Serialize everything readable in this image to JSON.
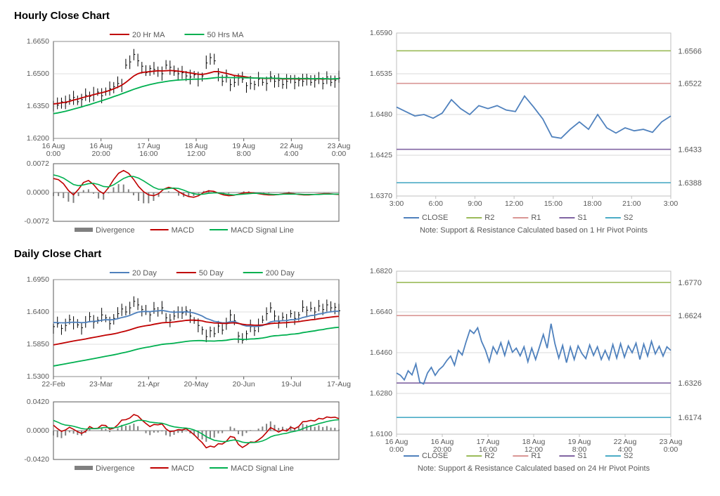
{
  "hourly": {
    "title": "Hourly Close Chart",
    "price": {
      "type": "line+ohlc",
      "ylim": [
        1.62,
        1.665
      ],
      "ytick_step": 0.015,
      "yticks": [
        "1.6200",
        "1.6350",
        "1.6500",
        "1.6650"
      ],
      "x_labels": [
        "16 Aug\n0:00",
        "16 Aug\n20:00",
        "17 Aug\n16:00",
        "18 Aug\n12:00",
        "19 Aug\n8:00",
        "22 Aug\n4:00",
        "23 Aug\n0:00"
      ],
      "close": [
        1.636,
        1.6355,
        1.637,
        1.6365,
        1.638,
        1.639,
        1.637,
        1.638,
        1.64,
        1.6395,
        1.6405,
        1.6415,
        1.6398,
        1.642,
        1.643,
        1.644,
        1.6455,
        1.645,
        1.654,
        1.6555,
        1.659,
        1.656,
        1.6535,
        1.6505,
        1.6525,
        1.652,
        1.6515,
        1.65,
        1.654,
        1.653,
        1.651,
        1.65,
        1.6505,
        1.649,
        1.6485,
        1.6495,
        1.6475,
        1.649,
        1.655,
        1.6575,
        1.656,
        1.65,
        1.6465,
        1.649,
        1.645,
        1.646,
        1.648,
        1.6475,
        1.6445,
        1.6455,
        1.645,
        1.6475,
        1.646,
        1.6455,
        1.6485,
        1.6465,
        1.647,
        1.645,
        1.6465,
        1.6475,
        1.646,
        1.647,
        1.6465,
        1.648,
        1.646,
        1.647,
        1.6478,
        1.6455,
        1.6485,
        1.646,
        1.647,
        1.648
      ],
      "hl_amp": 0.0035,
      "ma20": [
        1.636,
        1.6362,
        1.6365,
        1.6368,
        1.6372,
        1.6378,
        1.6382,
        1.6388,
        1.6393,
        1.6398,
        1.6403,
        1.6408,
        1.6412,
        1.6417,
        1.6423,
        1.643,
        1.6438,
        1.6447,
        1.646,
        1.6475,
        1.649,
        1.65,
        1.6506,
        1.6508,
        1.651,
        1.6512,
        1.6514,
        1.6513,
        1.6514,
        1.6515,
        1.6514,
        1.6512,
        1.651,
        1.6507,
        1.6504,
        1.6501,
        1.6498,
        1.6497,
        1.65,
        1.6505,
        1.651,
        1.651,
        1.6506,
        1.6502,
        1.6497,
        1.6492,
        1.649,
        1.6488,
        1.6485,
        1.6482,
        1.648,
        1.648,
        1.6479,
        1.6478,
        1.6479,
        1.6478,
        1.6478,
        1.6476,
        1.6476,
        1.6477,
        1.6476,
        1.6476,
        1.6476,
        1.6477,
        1.6476,
        1.6476,
        1.6477,
        1.6475,
        1.6477,
        1.6475,
        1.6476,
        1.6477
      ],
      "ma50": [
        1.6315,
        1.6318,
        1.6322,
        1.6326,
        1.6331,
        1.6336,
        1.6341,
        1.6346,
        1.6352,
        1.6357,
        1.6363,
        1.6369,
        1.6375,
        1.6381,
        1.6387,
        1.6394,
        1.64,
        1.6407,
        1.6414,
        1.6421,
        1.6428,
        1.6434,
        1.644,
        1.6445,
        1.645,
        1.6454,
        1.6458,
        1.6461,
        1.6464,
        1.6467,
        1.6469,
        1.6471,
        1.6472,
        1.6473,
        1.6474,
        1.6475,
        1.6475,
        1.6476,
        1.6477,
        1.6479,
        1.6481,
        1.6483,
        1.6483,
        1.6483,
        1.6482,
        1.6482,
        1.6482,
        1.6482,
        1.6481,
        1.6481,
        1.648,
        1.648,
        1.648,
        1.6479,
        1.648,
        1.6479,
        1.6479,
        1.6478,
        1.6478,
        1.6478,
        1.6478,
        1.6478,
        1.6478,
        1.6478,
        1.6477,
        1.6477,
        1.6478,
        1.6477,
        1.6477,
        1.6476,
        1.6477,
        1.6477
      ],
      "colors": {
        "close": "#000000",
        "ma20": "#c00000",
        "ma50": "#00b050",
        "grid": "#bfbfbf",
        "border": "#595959"
      },
      "legend": [
        {
          "label": "20 Hr MA",
          "color": "#c00000"
        },
        {
          "label": "50 Hrs MA",
          "color": "#00b050"
        }
      ]
    },
    "macd": {
      "type": "macd",
      "ylim": [
        -0.0072,
        0.0072
      ],
      "yticks": [
        "-0.0072",
        "0.0000",
        "0.0072"
      ],
      "macd": [
        0.0035,
        0.0032,
        0.0022,
        0.0005,
        -0.0006,
        0.0008,
        0.0025,
        0.003,
        0.002,
        0.0005,
        -0.0003,
        0.0012,
        0.0032,
        0.0048,
        0.0055,
        0.0048,
        0.0033,
        0.0015,
        0.0002,
        -0.0006,
        -0.0008,
        -0.0003,
        0.0008,
        0.0013,
        0.001,
        0.0002,
        -0.0005,
        -0.001,
        -0.0012,
        -0.0008,
        0.0,
        0.0004,
        0.0003,
        -0.0002,
        -0.0006,
        -0.0008,
        -0.0007,
        -0.0004,
        -0.0001,
        0.0,
        -0.0001,
        -0.0003,
        -0.0005,
        -0.0006,
        -0.0006,
        -0.0005,
        -0.0003,
        -0.0002,
        -0.0003,
        -0.0005,
        -0.0006,
        -0.0006,
        -0.0005,
        -0.0004,
        -0.0003,
        -0.0003,
        -0.0004,
        -0.0005
      ],
      "signal": [
        0.0044,
        0.0041,
        0.0036,
        0.0028,
        0.002,
        0.0017,
        0.0019,
        0.0022,
        0.0023,
        0.002,
        0.0015,
        0.0014,
        0.0019,
        0.0027,
        0.0035,
        0.004,
        0.004,
        0.0036,
        0.0029,
        0.0021,
        0.0013,
        0.0008,
        0.0008,
        0.001,
        0.0011,
        0.001,
        0.0006,
        0.0001,
        -0.0003,
        -0.0005,
        -0.0004,
        -0.0002,
        -0.0001,
        -0.0001,
        -0.0003,
        -0.0005,
        -0.0006,
        -0.0005,
        -0.0004,
        -0.0003,
        -0.0002,
        -0.0002,
        -0.0003,
        -0.0004,
        -0.0005,
        -0.0005,
        -0.0004,
        -0.0004,
        -0.0004,
        -0.0004,
        -0.0005,
        -0.0005,
        -0.0005,
        -0.0005,
        -0.0004,
        -0.0004,
        -0.0004,
        -0.0004
      ],
      "colors": {
        "macd": "#c00000",
        "signal": "#00b050",
        "hist": "#808080",
        "zero": "#595959",
        "border": "#595959"
      },
      "legend": [
        {
          "label": "Divergence",
          "color": "#808080",
          "thick": true
        },
        {
          "label": "MACD",
          "color": "#c00000"
        },
        {
          "label": "MACD Signal Line",
          "color": "#00b050"
        }
      ]
    },
    "sr": {
      "type": "support-resistance",
      "ylim": [
        1.637,
        1.659
      ],
      "yticks": [
        "1.6370",
        "1.6425",
        "1.6480",
        "1.6535",
        "1.6590"
      ],
      "x_labels": [
        "3:00",
        "6:00",
        "9:00",
        "12:00",
        "15:00",
        "18:00",
        "21:00",
        "3:00"
      ],
      "close": [
        1.649,
        1.6484,
        1.6478,
        1.648,
        1.6475,
        1.6482,
        1.65,
        1.6488,
        1.648,
        1.6492,
        1.6488,
        1.6492,
        1.6486,
        1.6484,
        1.6505,
        1.649,
        1.6474,
        1.645,
        1.6448,
        1.646,
        1.647,
        1.646,
        1.648,
        1.6462,
        1.6455,
        1.6462,
        1.6458,
        1.646,
        1.6456,
        1.647,
        1.6478
      ],
      "levels": [
        {
          "name": "R2",
          "value": 1.6566,
          "color": "#9bbb59"
        },
        {
          "name": "R1",
          "value": 1.6522,
          "color": "#d99694"
        },
        {
          "name": "S1",
          "value": 1.6433,
          "color": "#8064a2"
        },
        {
          "name": "S2",
          "value": 1.6388,
          "color": "#4bacc6"
        }
      ],
      "close_color": "#4f81bd",
      "grid": "#d9d9d9",
      "border": "#bfbfbf",
      "note": "Note: Support & Resistance Calculated based on 1 Hr Pivot Points",
      "legend": [
        {
          "label": "CLOSE",
          "color": "#4f81bd"
        },
        {
          "label": "R2",
          "color": "#9bbb59"
        },
        {
          "label": "R1",
          "color": "#d99694"
        },
        {
          "label": "S1",
          "color": "#8064a2"
        },
        {
          "label": "S2",
          "color": "#4bacc6"
        }
      ]
    }
  },
  "daily": {
    "title": "Daily Close Chart",
    "price": {
      "type": "line+ohlc",
      "ylim": [
        1.53,
        1.695
      ],
      "yticks": [
        "1.5300",
        "1.5850",
        "1.6400",
        "1.6950"
      ],
      "x_labels": [
        "22-Feb",
        "23-Mar",
        "21-Apr",
        "20-May",
        "20-Jun",
        "19-Jul",
        "17-Aug"
      ],
      "close": [
        1.615,
        1.62,
        1.612,
        1.617,
        1.627,
        1.622,
        1.618,
        1.613,
        1.622,
        1.632,
        1.623,
        1.626,
        1.635,
        1.63,
        1.62,
        1.629,
        1.637,
        1.645,
        1.64,
        1.647,
        1.658,
        1.652,
        1.644,
        1.64,
        1.635,
        1.645,
        1.642,
        1.647,
        1.63,
        1.626,
        1.633,
        1.64,
        1.638,
        1.642,
        1.633,
        1.625,
        1.617,
        1.61,
        1.598,
        1.608,
        1.603,
        1.616,
        1.609,
        1.62,
        1.635,
        1.625,
        1.599,
        1.592,
        1.603,
        1.615,
        1.608,
        1.617,
        1.626,
        1.637,
        1.647,
        1.633,
        1.623,
        1.631,
        1.625,
        1.637,
        1.629,
        1.635,
        1.648,
        1.643,
        1.646,
        1.64,
        1.65,
        1.644,
        1.652,
        1.647,
        1.648,
        1.642
      ],
      "hl_amp": 0.012,
      "ma20": [
        1.622,
        1.6218,
        1.6215,
        1.6215,
        1.6222,
        1.6225,
        1.6222,
        1.6218,
        1.622,
        1.6235,
        1.624,
        1.6245,
        1.626,
        1.6268,
        1.6265,
        1.627,
        1.6285,
        1.6305,
        1.632,
        1.634,
        1.637,
        1.6395,
        1.6405,
        1.6408,
        1.6405,
        1.6415,
        1.6418,
        1.6427,
        1.6415,
        1.64,
        1.6395,
        1.6398,
        1.6398,
        1.6402,
        1.6395,
        1.638,
        1.6358,
        1.633,
        1.629,
        1.6268,
        1.624,
        1.623,
        1.6215,
        1.6215,
        1.6235,
        1.6238,
        1.621,
        1.6178,
        1.616,
        1.616,
        1.6152,
        1.6155,
        1.6168,
        1.6195,
        1.623,
        1.6245,
        1.6245,
        1.6252,
        1.6253,
        1.6268,
        1.627,
        1.628,
        1.6305,
        1.632,
        1.6338,
        1.6345,
        1.6365,
        1.6375,
        1.6393,
        1.6402,
        1.6412,
        1.6413
      ],
      "ma50": [
        1.584,
        1.5852,
        1.5865,
        1.5878,
        1.5892,
        1.5905,
        1.5917,
        1.5928,
        1.594,
        1.5954,
        1.5966,
        1.5978,
        1.5992,
        1.6005,
        1.6015,
        1.6027,
        1.6042,
        1.606,
        1.6076,
        1.6095,
        1.6118,
        1.6138,
        1.6153,
        1.6165,
        1.6175,
        1.619,
        1.6202,
        1.6215,
        1.622,
        1.6222,
        1.6228,
        1.6238,
        1.6246,
        1.6256,
        1.626,
        1.626,
        1.6256,
        1.6248,
        1.623,
        1.6222,
        1.6212,
        1.621,
        1.6205,
        1.6205,
        1.6212,
        1.6215,
        1.6204,
        1.619,
        1.6182,
        1.618,
        1.6174,
        1.6174,
        1.6178,
        1.6188,
        1.6202,
        1.6208,
        1.621,
        1.6215,
        1.6217,
        1.6225,
        1.6228,
        1.6234,
        1.6246,
        1.6255,
        1.6265,
        1.6272,
        1.6284,
        1.6292,
        1.6303,
        1.6312,
        1.632,
        1.6325
      ],
      "ma200": [
        1.548,
        1.5492,
        1.5505,
        1.5517,
        1.553,
        1.5542,
        1.5555,
        1.5567,
        1.558,
        1.5593,
        1.5605,
        1.5618,
        1.5632,
        1.5645,
        1.5657,
        1.567,
        1.5684,
        1.57,
        1.5714,
        1.573,
        1.575,
        1.5768,
        1.5783,
        1.5796,
        1.5807,
        1.5822,
        1.5834,
        1.5848,
        1.5855,
        1.586,
        1.5868,
        1.5878,
        1.5887,
        1.5898,
        1.5905,
        1.591,
        1.5912,
        1.5912,
        1.5905,
        1.5905,
        1.5904,
        1.591,
        1.5912,
        1.5918,
        1.593,
        1.5938,
        1.5936,
        1.5932,
        1.5934,
        1.594,
        1.5942,
        1.5948,
        1.5956,
        1.5968,
        1.5984,
        1.5994,
        1.5998,
        1.6005,
        1.6009,
        1.602,
        1.6025,
        1.6033,
        1.6048,
        1.6058,
        1.6069,
        1.6078,
        1.6092,
        1.61,
        1.6114,
        1.6124,
        1.6133,
        1.6138
      ],
      "colors": {
        "close": "#000000",
        "ma20": "#4f81bd",
        "ma50": "#c00000",
        "ma200": "#00b050",
        "grid": "#bfbfbf",
        "border": "#595959"
      },
      "legend": [
        {
          "label": "20 Day",
          "color": "#4f81bd"
        },
        {
          "label": "50 Day",
          "color": "#c00000"
        },
        {
          "label": "200 Day",
          "color": "#00b050"
        }
      ]
    },
    "macd": {
      "type": "macd",
      "ylim": [
        -0.042,
        0.042
      ],
      "yticks": [
        "-0.0420",
        "0.0000",
        "0.0420"
      ],
      "macd": [
        0.008,
        0.003,
        -0.001,
        0.001,
        0.005,
        0.002,
        -0.0015,
        -0.004,
        -0.001,
        0.006,
        0.003,
        0.0035,
        0.008,
        0.0075,
        0.002,
        0.0035,
        0.0085,
        0.0155,
        0.016,
        0.0185,
        0.0235,
        0.0215,
        0.0155,
        0.0105,
        0.006,
        0.009,
        0.0085,
        0.0098,
        0.0025,
        -0.0015,
        -0.0005,
        0.0015,
        0.001,
        0.0028,
        -0.0012,
        -0.006,
        -0.012,
        -0.0175,
        -0.025,
        -0.0225,
        -0.024,
        -0.019,
        -0.0195,
        -0.0155,
        -0.0085,
        -0.0098,
        -0.02,
        -0.0245,
        -0.021,
        -0.0165,
        -0.017,
        -0.0135,
        -0.009,
        -0.0025,
        0.0045,
        0.0015,
        -0.002,
        0.001,
        -0.0005,
        0.005,
        0.003,
        0.006,
        0.013,
        0.0135,
        0.015,
        0.014,
        0.018,
        0.017,
        0.02,
        0.019,
        0.0197,
        0.0175
      ],
      "signal": [
        0.015,
        0.0126,
        0.0099,
        0.0081,
        0.0075,
        0.0064,
        0.0048,
        0.0031,
        0.0023,
        0.003,
        0.003,
        0.0031,
        0.0041,
        0.0048,
        0.0042,
        0.0041,
        0.005,
        0.0071,
        0.0089,
        0.0108,
        0.0133,
        0.015,
        0.0151,
        0.0142,
        0.0125,
        0.0118,
        0.0112,
        0.0109,
        0.0092,
        0.0071,
        0.0056,
        0.0048,
        0.004,
        0.0038,
        0.0028,
        0.001,
        -0.0016,
        -0.0048,
        -0.0088,
        -0.0115,
        -0.014,
        -0.015,
        -0.0159,
        -0.0158,
        -0.0144,
        -0.0135,
        -0.0148,
        -0.0167,
        -0.0176,
        -0.0174,
        -0.0173,
        -0.0165,
        -0.015,
        -0.0125,
        -0.0091,
        -0.007,
        -0.006,
        -0.0046,
        -0.0038,
        -0.002,
        -0.001,
        0.0004,
        0.0029,
        0.005,
        0.007,
        0.0084,
        0.0103,
        0.0117,
        0.0133,
        0.0145,
        0.0155,
        0.0159
      ],
      "colors": {
        "macd": "#c00000",
        "signal": "#00b050",
        "hist": "#808080",
        "zero": "#595959",
        "border": "#595959"
      },
      "legend": [
        {
          "label": "Divergence",
          "color": "#808080",
          "thick": true
        },
        {
          "label": "MACD",
          "color": "#c00000"
        },
        {
          "label": "MACD Signal Line",
          "color": "#00b050"
        }
      ]
    },
    "sr": {
      "type": "support-resistance",
      "ylim": [
        1.61,
        1.682
      ],
      "yticks": [
        "1.6100",
        "1.6280",
        "1.6460",
        "1.6640",
        "1.6820"
      ],
      "x_labels": [
        "16 Aug\n0:00",
        "16 Aug\n20:00",
        "17 Aug\n16:00",
        "18 Aug\n12:00",
        "19 Aug\n8:00",
        "22 Aug\n4:00",
        "23 Aug\n0:00"
      ],
      "close": [
        1.637,
        1.636,
        1.634,
        1.638,
        1.6362,
        1.641,
        1.633,
        1.6322,
        1.637,
        1.6395,
        1.636,
        1.6385,
        1.64,
        1.6425,
        1.6445,
        1.6405,
        1.647,
        1.645,
        1.6508,
        1.656,
        1.6545,
        1.657,
        1.651,
        1.6472,
        1.642,
        1.6486,
        1.6455,
        1.6504,
        1.6448,
        1.651,
        1.6462,
        1.648,
        1.6446,
        1.6486,
        1.642,
        1.648,
        1.643,
        1.6485,
        1.654,
        1.648,
        1.6588,
        1.65,
        1.6436,
        1.6492,
        1.6416,
        1.6485,
        1.643,
        1.649,
        1.6456,
        1.6434,
        1.6494,
        1.6448,
        1.6486,
        1.643,
        1.647,
        1.643,
        1.6496,
        1.6436,
        1.65,
        1.644,
        1.649,
        1.646,
        1.6502,
        1.643,
        1.6498,
        1.6445,
        1.651,
        1.6455,
        1.6488,
        1.6445,
        1.6486,
        1.647
      ],
      "levels": [
        {
          "name": "R2",
          "value": 1.677,
          "color": "#9bbb59"
        },
        {
          "name": "R1",
          "value": 1.6624,
          "color": "#d99694"
        },
        {
          "name": "S1",
          "value": 1.6326,
          "color": "#8064a2"
        },
        {
          "name": "S2",
          "value": 1.6174,
          "color": "#4bacc6"
        }
      ],
      "close_color": "#4f81bd",
      "grid": "#d9d9d9",
      "border": "#bfbfbf",
      "note": "Note: Support & Resistance Calculated based on 24 Hr Pivot Points",
      "legend": [
        {
          "label": "CLOSE",
          "color": "#4f81bd"
        },
        {
          "label": "R2",
          "color": "#9bbb59"
        },
        {
          "label": "R1",
          "color": "#d99694"
        },
        {
          "label": "S1",
          "color": "#8064a2"
        },
        {
          "label": "S2",
          "color": "#4bacc6"
        }
      ]
    }
  }
}
